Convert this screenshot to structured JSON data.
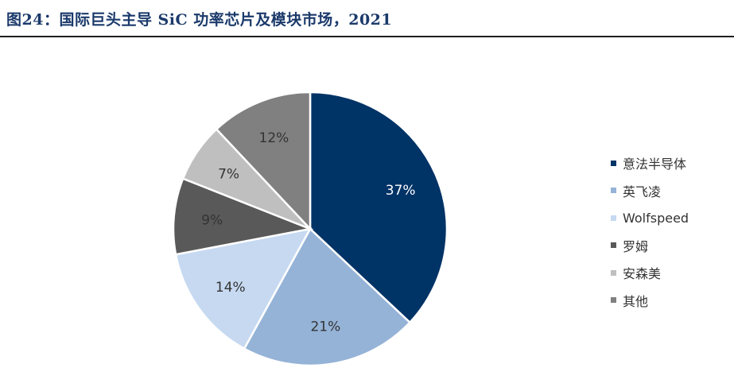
{
  "title": "图24：国际巨头主导 SiC 功率芯片及模块市场，2021",
  "chart_data": {
    "type": "pie",
    "title": "图24：国际巨头主导 SiC 功率芯片及模块市场，2021",
    "categories": [
      "意法半导体",
      "英飞凌",
      "Wolfspeed",
      "罗姆",
      "安森美",
      "其他"
    ],
    "values": [
      37,
      21,
      14,
      9,
      7,
      12
    ],
    "labels": [
      "37%",
      "21%",
      "14%",
      "9%",
      "7%",
      "12%"
    ],
    "colors": [
      "#003366",
      "#95b3d7",
      "#c6d9f1",
      "#595959",
      "#bfbfbf",
      "#808080"
    ],
    "label_colors": [
      "#ffffff",
      "#333333",
      "#333333",
      "#333333",
      "#333333",
      "#333333"
    ],
    "legend_placement": "right",
    "start_angle": "12 o'clock, clockwise"
  }
}
